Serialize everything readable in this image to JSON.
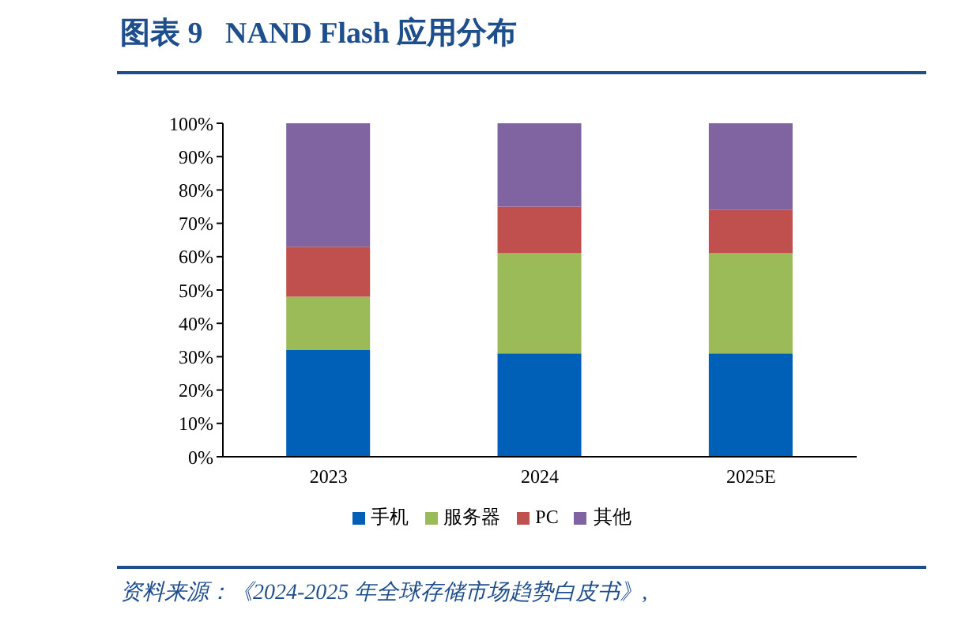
{
  "chart_data": {
    "type": "bar",
    "title": "图表 9   NAND Flash 应用分布",
    "categories": [
      "2023",
      "2024",
      "2025E"
    ],
    "series": [
      {
        "name": "手机",
        "color": "#0060b8",
        "values": [
          32,
          31,
          31
        ]
      },
      {
        "name": "服务器",
        "color": "#9bbb59",
        "values": [
          16,
          30,
          30
        ]
      },
      {
        "name": "PC",
        "color": "#c0504d",
        "values": [
          15,
          14,
          13
        ]
      },
      {
        "name": "其他",
        "color": "#8064a2",
        "values": [
          37,
          25,
          26
        ]
      }
    ],
    "stacked": true,
    "ylim": [
      0,
      100
    ],
    "yticks": [
      {
        "value": 0,
        "label": "0%"
      },
      {
        "value": 10,
        "label": "10%"
      },
      {
        "value": 20,
        "label": "20%"
      },
      {
        "value": 30,
        "label": "30%"
      },
      {
        "value": 40,
        "label": "40%"
      },
      {
        "value": 50,
        "label": "50%"
      },
      {
        "value": 60,
        "label": "60%"
      },
      {
        "value": 70,
        "label": "70%"
      },
      {
        "value": 80,
        "label": "80%"
      },
      {
        "value": 90,
        "label": "90%"
      },
      {
        "value": 100,
        "label": "100%"
      }
    ],
    "legend": "bottom",
    "annotations": [
      "资料来源：《2024-2025 年全球存储市场趋势白皮书》,"
    ]
  }
}
